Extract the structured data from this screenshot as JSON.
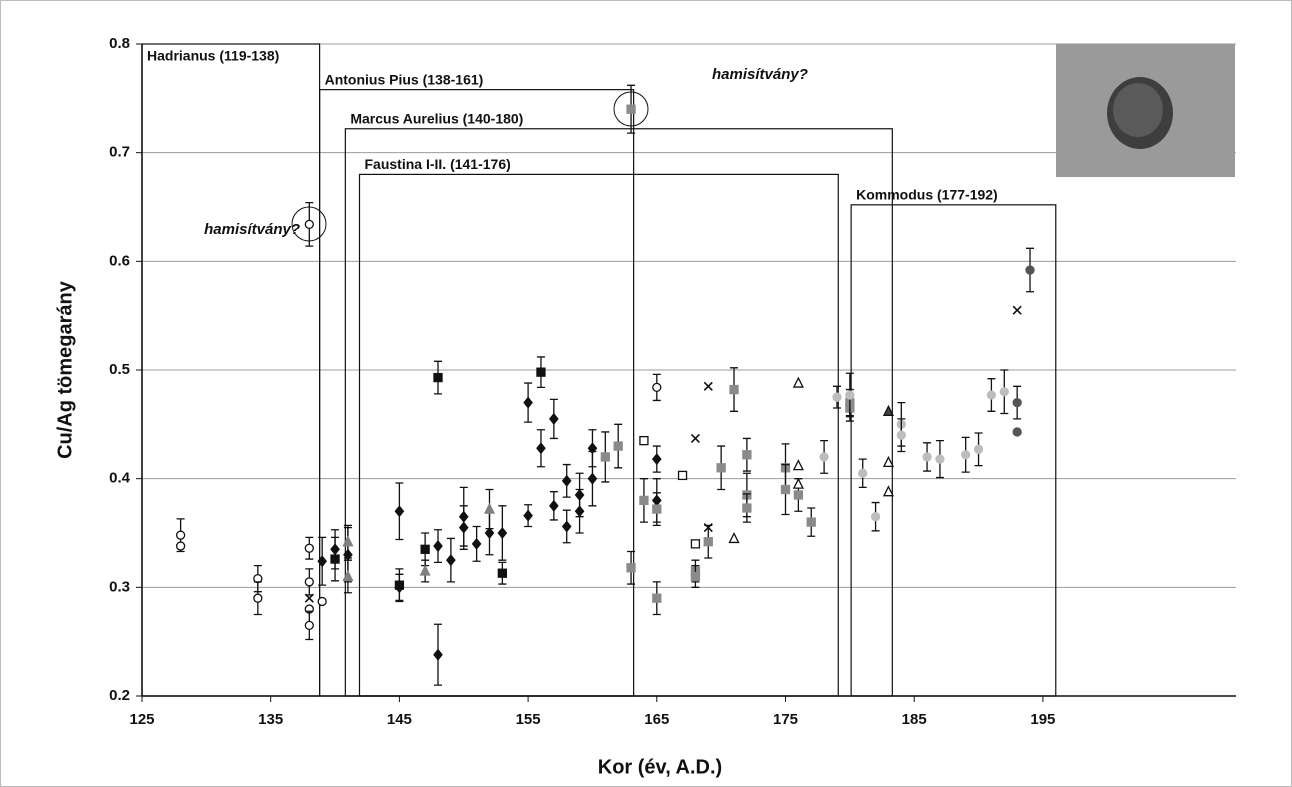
{
  "chart_data": {
    "type": "scatter",
    "xlabel": "Kor (év, A.D.)",
    "ylabel": "Cu/Ag tömegarány",
    "xlim": [
      125,
      210
    ],
    "ylim": [
      0.2,
      0.8
    ],
    "xticks": [
      125,
      135,
      145,
      155,
      165,
      175,
      185,
      195
    ],
    "yticks": [
      0.2,
      0.3,
      0.4,
      0.5,
      0.6,
      0.7,
      0.8
    ],
    "grid": true,
    "periods": [
      {
        "label": "Hadrianus (119-138)",
        "start": 125,
        "end": 138.8,
        "top": 0.8
      },
      {
        "label": "Antonius Pius (138-161)",
        "start": 138.8,
        "end": 163.2,
        "top": 0.758
      },
      {
        "label": "Marcus Aurelius (140-180)",
        "start": 140.8,
        "end": 183.3,
        "top": 0.722
      },
      {
        "label": "Faustina I-II. (141-176)",
        "start": 141.9,
        "end": 179.1,
        "top": 0.68
      },
      {
        "label": "Kommodus (177-192)",
        "start": 180.1,
        "end": 196.0,
        "top": 0.652
      }
    ],
    "annotations": [
      "hamisítvány?",
      "hamisítvány?"
    ],
    "series": [
      {
        "marker": "circle",
        "fill": "#ffffff",
        "color": "#111111",
        "x": [
          128,
          128,
          134,
          134,
          138,
          138,
          138,
          138,
          138,
          139,
          165
        ],
        "values": [
          0.348,
          0.338,
          0.308,
          0.29,
          0.336,
          0.305,
          0.28,
          0.265,
          0.634,
          0.287,
          0.484
        ],
        "errors": [
          0.015,
          null,
          0.012,
          0.015,
          0.01,
          0.012,
          null,
          0.013,
          0.02,
          null,
          0.012
        ]
      },
      {
        "marker": "diamond",
        "fill": "#111111",
        "color": "#111111",
        "x": [
          139,
          140,
          141,
          145,
          145,
          148,
          148,
          149,
          150,
          150,
          151,
          152,
          153,
          155,
          155,
          156,
          157,
          157,
          158,
          158,
          159,
          159,
          160,
          160,
          165,
          165
        ],
        "values": [
          0.324,
          0.335,
          0.33,
          0.37,
          0.3,
          0.338,
          0.238,
          0.325,
          0.365,
          0.355,
          0.34,
          0.35,
          0.35,
          0.47,
          0.366,
          0.428,
          0.455,
          0.375,
          0.398,
          0.356,
          0.385,
          0.37,
          0.428,
          0.4,
          0.418,
          0.38
        ],
        "errors": [
          0.022,
          0.018,
          0.025,
          0.026,
          0.012,
          0.015,
          0.028,
          0.02,
          0.027,
          0.02,
          0.016,
          0.02,
          0.025,
          0.018,
          0.01,
          0.017,
          0.018,
          0.013,
          0.015,
          0.015,
          0.02,
          0.02,
          0.017,
          0.025,
          0.012,
          0.02
        ]
      },
      {
        "marker": "square",
        "fill": "#111111",
        "color": "#111111",
        "x": [
          140,
          145,
          147,
          148,
          153,
          156
        ],
        "values": [
          0.326,
          0.302,
          0.335,
          0.493,
          0.313,
          0.498
        ],
        "errors": [
          0.02,
          0.015,
          0.015,
          0.015,
          0.01,
          0.014
        ]
      },
      {
        "marker": "square",
        "fill": "#8a8a8a",
        "color": "#8a8a8a",
        "x": [
          161,
          162,
          163,
          163,
          164,
          165,
          165,
          168,
          168,
          169,
          170,
          171,
          172,
          172,
          172,
          175,
          175,
          176,
          177,
          180,
          180
        ],
        "values": [
          0.42,
          0.43,
          0.318,
          0.74,
          0.38,
          0.372,
          0.29,
          0.315,
          0.31,
          0.342,
          0.41,
          0.482,
          0.422,
          0.385,
          0.373,
          0.41,
          0.39,
          0.385,
          0.36,
          0.465,
          0.47
        ],
        "errors": [
          0.023,
          0.02,
          0.015,
          0.022,
          0.02,
          0.015,
          0.015,
          0.01,
          0.01,
          0.015,
          0.02,
          0.02,
          0.015,
          0.02,
          0.013,
          0.022,
          0.023,
          0.015,
          0.013,
          0.012,
          0.012
        ]
      },
      {
        "marker": "triangle",
        "fill": "#808080",
        "color": "#808080",
        "x": [
          141,
          141,
          147,
          152
        ],
        "values": [
          0.342,
          0.31,
          0.315,
          0.372
        ],
        "errors": [
          0.015,
          0.015,
          0.01,
          0.018
        ]
      },
      {
        "marker": "square",
        "fill": "#ffffff",
        "color": "#111111",
        "x": [
          164,
          167,
          168
        ],
        "values": [
          0.435,
          0.403,
          0.34
        ],
        "errors": [
          null,
          null,
          null
        ]
      },
      {
        "marker": "cross",
        "fill": "none",
        "color": "#111111",
        "x": [
          138,
          168,
          169,
          169,
          193
        ],
        "values": [
          0.29,
          0.437,
          0.485,
          0.355,
          0.555
        ],
        "errors": [
          null,
          null,
          null,
          null,
          null
        ]
      },
      {
        "marker": "triangle",
        "fill": "#ffffff",
        "color": "#111111",
        "x": [
          171,
          176,
          176,
          176,
          183,
          183
        ],
        "values": [
          0.345,
          0.488,
          0.412,
          0.395,
          0.415,
          0.388
        ],
        "errors": [
          null,
          null,
          null,
          null,
          null,
          null
        ]
      },
      {
        "marker": "triangle",
        "fill": "#444444",
        "color": "#111111",
        "x": [
          183
        ],
        "values": [
          0.462
        ],
        "errors": [
          null
        ]
      },
      {
        "marker": "circle",
        "fill": "#bdbdbd",
        "color": "#bdbdbd",
        "x": [
          178,
          179,
          180,
          181,
          182,
          184,
          184,
          186,
          187,
          189,
          190,
          191,
          192
        ],
        "values": [
          0.42,
          0.475,
          0.477,
          0.405,
          0.365,
          0.45,
          0.44,
          0.42,
          0.418,
          0.422,
          0.427,
          0.477,
          0.48
        ],
        "errors": [
          0.015,
          0.01,
          0.02,
          0.013,
          0.013,
          0.02,
          0.015,
          0.013,
          0.017,
          0.016,
          0.015,
          0.015,
          0.02
        ]
      },
      {
        "marker": "circle",
        "fill": "#555555",
        "color": "#555555",
        "x": [
          193,
          193,
          194
        ],
        "values": [
          0.47,
          0.443,
          0.592
        ],
        "errors": [
          0.015,
          null,
          0.02
        ]
      }
    ]
  }
}
